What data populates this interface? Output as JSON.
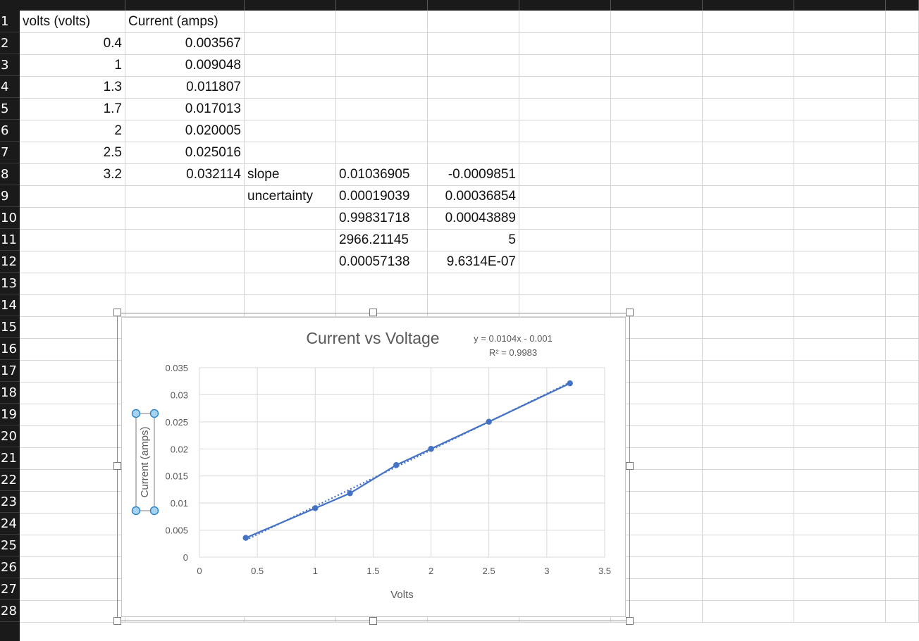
{
  "sheet": {
    "rows": [
      "1",
      "2",
      "3",
      "4",
      "5",
      "6",
      "7",
      "8",
      "9",
      "10",
      "11",
      "12",
      "13",
      "14",
      "15",
      "16",
      "17",
      "18",
      "19",
      "20",
      "21",
      "22",
      "23",
      "24",
      "25",
      "26",
      "27",
      "28"
    ],
    "header_row": {
      "a": "volts (volts)",
      "b": "Current (amps)"
    },
    "data_rows": [
      {
        "a": "0.4",
        "b": "0.003567"
      },
      {
        "a": "1",
        "b": "0.009048"
      },
      {
        "a": "1.3",
        "b": "0.011807"
      },
      {
        "a": "1.7",
        "b": "0.017013"
      },
      {
        "a": "2",
        "b": "0.020005"
      },
      {
        "a": "2.5",
        "b": "0.025016"
      },
      {
        "a": "3.2",
        "b": "0.032114"
      }
    ],
    "regression": [
      {
        "label": "slope",
        "d": "0.01036905",
        "e": "-0.0009851"
      },
      {
        "label": "uncertainty",
        "d": "0.00019039",
        "e": "0.00036854"
      },
      {
        "label": "",
        "d": "0.99831718",
        "e": "0.00043889"
      },
      {
        "label": "",
        "d": "2966.21145",
        "e": "5"
      },
      {
        "label": "",
        "d": "0.00057138",
        "e": "9.6314E-07"
      }
    ]
  },
  "chart_data": {
    "type": "scatter",
    "title": "Current vs Voltage",
    "xlabel": "Volts",
    "ylabel": "Current (amps)",
    "xlim": [
      0,
      3.5
    ],
    "ylim": [
      0,
      0.035
    ],
    "xticks": [
      "0",
      "0.5",
      "1",
      "1.5",
      "2",
      "2.5",
      "3",
      "3.5"
    ],
    "yticks": [
      "0",
      "0.005",
      "0.01",
      "0.015",
      "0.02",
      "0.025",
      "0.03",
      "0.035"
    ],
    "grid": true,
    "legend": "none",
    "series": [
      {
        "x": [
          0.4,
          1,
          1.3,
          1.7,
          2,
          2.5,
          3.2
        ],
        "y": [
          0.003567,
          0.009048,
          0.011807,
          0.017013,
          0.020005,
          0.025016,
          0.032114
        ],
        "color": "#4472c4",
        "connected": true
      }
    ],
    "trendline": {
      "type": "linear",
      "slope": 0.0104,
      "intercept": -0.001,
      "style": "dotted",
      "equation": "y = 0.0104x - 0.001",
      "r_squared": "R² = 0.9983"
    }
  }
}
